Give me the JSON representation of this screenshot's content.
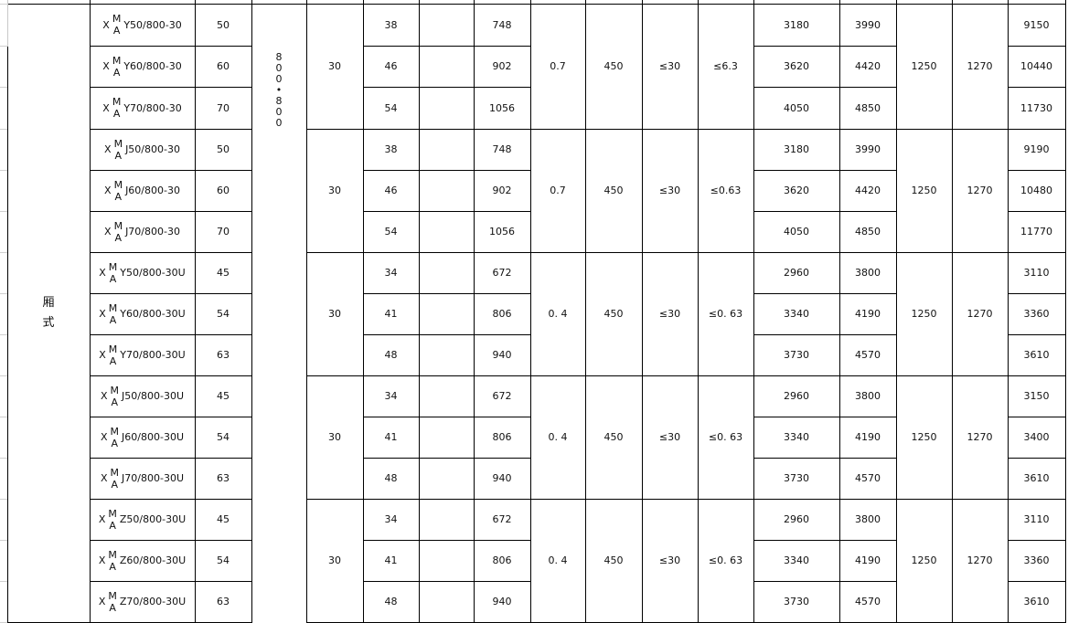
{
  "type_label": "厢\n式",
  "size_label": [
    "8",
    "0",
    "0",
    "•",
    "8",
    "0",
    "0"
  ],
  "model_prefix": "X",
  "model_sup": "M",
  "model_sub": "A",
  "groups": [
    {
      "common": {
        "c30": "30",
        "coef": "0.7",
        "c450": "450",
        "le30": "≤30",
        "le2": "≤6.3",
        "c1250": "1250",
        "c1270": "1270"
      },
      "rows": [
        {
          "model": "Y50/800-30",
          "cap": "50",
          "a": "38",
          "b": "748",
          "c": "3180",
          "d": "3990",
          "e": "9150"
        },
        {
          "model": "Y60/800-30",
          "cap": "60",
          "a": "46",
          "b": "902",
          "c": "3620",
          "d": "4420",
          "e": "10440"
        },
        {
          "model": "Y70/800-30",
          "cap": "70",
          "a": "54",
          "b": "1056",
          "c": "4050",
          "d": "4850",
          "e": "11730"
        }
      ]
    },
    {
      "common": {
        "c30": "30",
        "coef": "0.7",
        "c450": "450",
        "le30": "≤30",
        "le2": "≤0.63",
        "c1250": "1250",
        "c1270": "1270"
      },
      "rows": [
        {
          "model": "J50/800-30",
          "cap": "50",
          "a": "38",
          "b": "748",
          "c": "3180",
          "d": "3990",
          "e": "9190"
        },
        {
          "model": "J60/800-30",
          "cap": "60",
          "a": "46",
          "b": "902",
          "c": "3620",
          "d": "4420",
          "e": "10480"
        },
        {
          "model": "J70/800-30",
          "cap": "70",
          "a": "54",
          "b": "1056",
          "c": "4050",
          "d": "4850",
          "e": "11770"
        }
      ]
    },
    {
      "common": {
        "c30": "30",
        "coef": "0. 4",
        "c450": "450",
        "le30": "≤30",
        "le2": "≤0. 63",
        "c1250": "1250",
        "c1270": "1270"
      },
      "rows": [
        {
          "model": "Y50/800-30U",
          "cap": "45",
          "a": "34",
          "b": "672",
          "c": "2960",
          "d": "3800",
          "e": "3110"
        },
        {
          "model": "Y60/800-30U",
          "cap": "54",
          "a": "41",
          "b": "806",
          "c": "3340",
          "d": "4190",
          "e": "3360"
        },
        {
          "model": "Y70/800-30U",
          "cap": "63",
          "a": "48",
          "b": "940",
          "c": "3730",
          "d": "4570",
          "e": "3610"
        }
      ]
    },
    {
      "common": {
        "c30": "30",
        "coef": "0. 4",
        "c450": "450",
        "le30": "≤30",
        "le2": "≤0. 63",
        "c1250": "1250",
        "c1270": "1270"
      },
      "rows": [
        {
          "model": "J50/800-30U",
          "cap": "45",
          "a": "34",
          "b": "672",
          "c": "2960",
          "d": "3800",
          "e": "3150"
        },
        {
          "model": "J60/800-30U",
          "cap": "54",
          "a": "41",
          "b": "806",
          "c": "3340",
          "d": "4190",
          "e": "3400"
        },
        {
          "model": "J70/800-30U",
          "cap": "63",
          "a": "48",
          "b": "940",
          "c": "3730",
          "d": "4570",
          "e": "3610"
        }
      ]
    },
    {
      "common": {
        "c30": "30",
        "coef": "0. 4",
        "c450": "450",
        "le30": "≤30",
        "le2": "≤0. 63",
        "c1250": "1250",
        "c1270": "1270"
      },
      "rows": [
        {
          "model": "Z50/800-30U",
          "cap": "45",
          "a": "34",
          "b": "672",
          "c": "2960",
          "d": "3800",
          "e": "3110"
        },
        {
          "model": "Z60/800-30U",
          "cap": "54",
          "a": "41",
          "b": "806",
          "c": "3340",
          "d": "4190",
          "e": "3360"
        },
        {
          "model": "Z70/800-30U",
          "cap": "63",
          "a": "48",
          "b": "940",
          "c": "3730",
          "d": "4570",
          "e": "3610"
        }
      ]
    }
  ]
}
